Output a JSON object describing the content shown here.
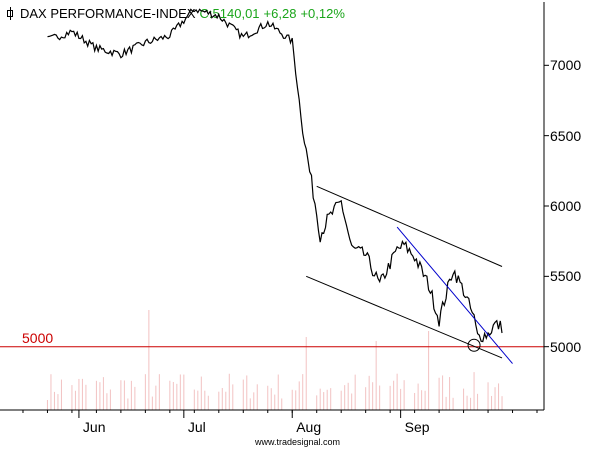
{
  "header": {
    "name": "DAX PERFORMANCE-INDEX",
    "close": "C:5140,01",
    "change": "+6,28",
    "change_pct": "+0,12%",
    "quote_color": "#1aa51a"
  },
  "watermark": "www.tradesignal.com",
  "chart_data": {
    "type": "line",
    "title": "DAX PERFORMANCE-INDEX",
    "x_labels": [
      "Jun",
      "Jul",
      "Aug",
      "Sep"
    ],
    "y_ticks": [
      5000,
      5500,
      6000,
      6500,
      7000
    ],
    "y_tick_labels": [
      "5000",
      "5500",
      "6000",
      "6500",
      "7000"
    ],
    "ylim": [
      4550,
      7450
    ],
    "grid": false,
    "y_axis_side": "right",
    "series": [
      {
        "x": [
          "2011-05-23",
          "2011-05-30",
          "2011-06-06",
          "2011-06-13",
          "2011-06-20",
          "2011-06-27",
          "2011-07-04",
          "2011-07-11",
          "2011-07-18",
          "2011-07-25",
          "2011-08-01",
          "2011-08-04",
          "2011-08-08",
          "2011-08-09",
          "2011-08-11",
          "2011-08-15",
          "2011-08-18",
          "2011-08-22",
          "2011-08-26",
          "2011-08-31",
          "2011-09-02",
          "2011-09-05",
          "2011-09-09",
          "2011-09-12",
          "2011-09-16",
          "2011-09-19",
          "2011-09-22",
          "2011-09-23",
          "2011-09-26",
          "2011-09-28",
          "2011-09-30"
        ],
        "values": [
          7180,
          7240,
          7120,
          7080,
          7160,
          7210,
          7400,
          7350,
          7200,
          7300,
          7170,
          6540,
          5950,
          5790,
          5900,
          6030,
          5700,
          5650,
          5440,
          5690,
          5720,
          5640,
          5440,
          5190,
          5550,
          5400,
          5200,
          5070,
          5090,
          5160,
          5140
        ],
        "color": "#000000"
      }
    ],
    "volume": {
      "x": [
        "2011-06-21",
        "2011-08-05",
        "2011-08-25",
        "2011-09-09"
      ],
      "values": [
        100,
        73,
        69,
        79
      ],
      "color": "#f2c2c2"
    },
    "annotations": [
      {
        "type": "horizontal_line",
        "value": 5000,
        "label": "5000",
        "color": "#cc0000"
      },
      {
        "type": "channel_upper",
        "from": {
          "x": "2011-08-08",
          "y": 6140
        },
        "to": {
          "x": "2011-09-30",
          "y": 5570
        },
        "color": "#000000"
      },
      {
        "type": "channel_lower",
        "from": {
          "x": "2011-08-05",
          "y": 5500
        },
        "to": {
          "x": "2011-09-30",
          "y": 4920
        },
        "color": "#000000"
      },
      {
        "type": "trend_line",
        "from": {
          "x": "2011-08-31",
          "y": 5850
        },
        "to": {
          "x": "2011-10-03",
          "y": 4880
        },
        "color": "#0000cc"
      },
      {
        "type": "circle_marker",
        "x": "2011-09-22",
        "y": 5010,
        "color": "#000000"
      }
    ]
  }
}
